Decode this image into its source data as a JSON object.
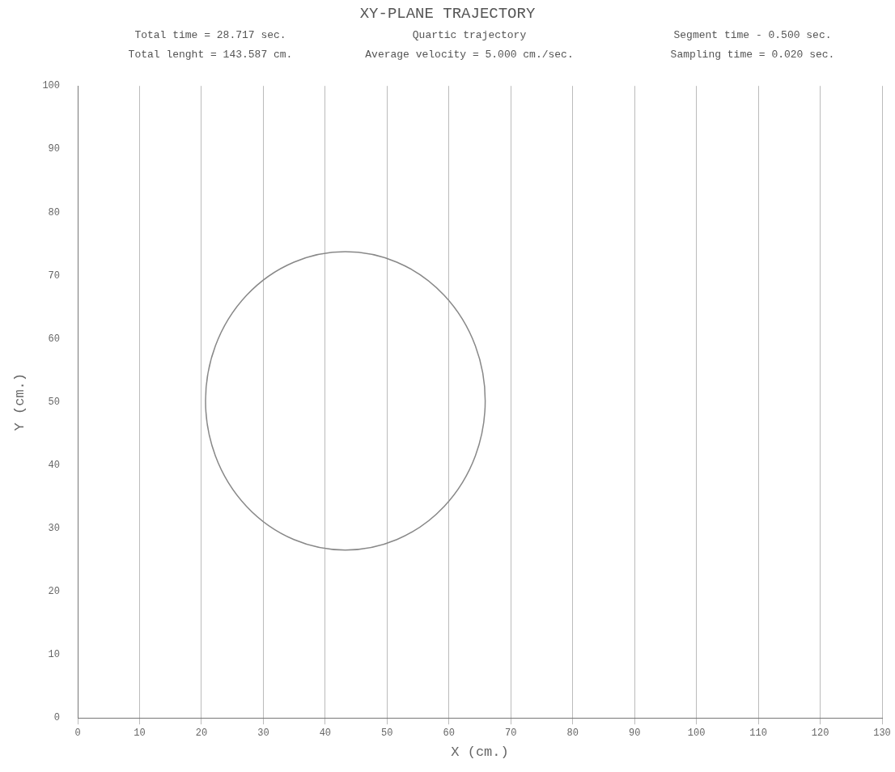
{
  "chart_data": {
    "type": "line",
    "title": "XY-PLANE TRAJECTORY",
    "annotations": [
      "Total time = 28.717 sec.",
      "Quartic trajectory",
      "Segment time - 0.500 sec.",
      "Total lenght = 143.587 cm.",
      "Average velocity = 5.000 cm./sec.",
      "Sampling time = 0.020 sec."
    ],
    "xlabel": "X (cm.)",
    "ylabel": "Y (cm.)",
    "xlim": [
      0,
      130
    ],
    "xticks": [
      0,
      10,
      20,
      30,
      40,
      50,
      60,
      70,
      80,
      90,
      100,
      110,
      120,
      130
    ],
    "ylim": [
      0,
      100
    ],
    "yticks": [
      0,
      10,
      20,
      30,
      40,
      50,
      60,
      70,
      80,
      90,
      100
    ],
    "grid": "x"
  }
}
